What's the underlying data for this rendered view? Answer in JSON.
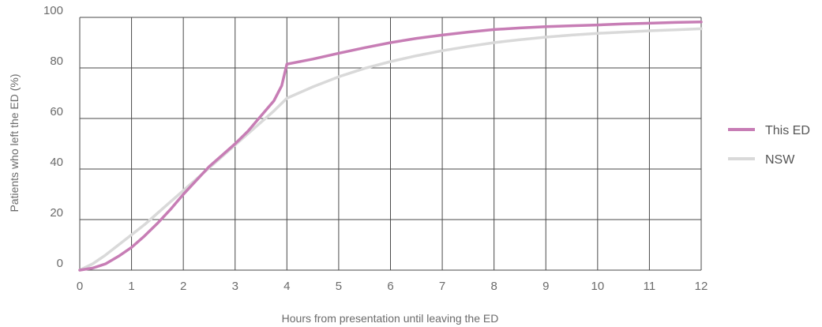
{
  "chart_data": {
    "type": "line",
    "title": "",
    "xlabel": "Hours from presentation until leaving the ED",
    "ylabel": "Patients who left the ED (%)",
    "xlim": [
      0,
      12
    ],
    "ylim": [
      0,
      100
    ],
    "xticks": [
      "0",
      "1",
      "2",
      "3",
      "4",
      "5",
      "6",
      "7",
      "8",
      "9",
      "10",
      "11",
      "12"
    ],
    "yticks": [
      "0",
      "20",
      "40",
      "60",
      "80",
      "100"
    ],
    "grid": true,
    "legend_position": "right",
    "series": [
      {
        "name": "This ED",
        "color": "#c77db5",
        "x": [
          0,
          0.25,
          0.5,
          0.75,
          1,
          1.25,
          1.5,
          1.75,
          2,
          2.25,
          2.5,
          2.75,
          3,
          3.25,
          3.5,
          3.75,
          3.9,
          4,
          4.5,
          5,
          5.5,
          6,
          6.5,
          7,
          7.5,
          8,
          8.5,
          9,
          9.5,
          10,
          10.5,
          11,
          11.5,
          12
        ],
        "y": [
          0,
          0.8,
          2.5,
          5.5,
          9,
          13.5,
          18.5,
          24,
          30,
          35.5,
          41,
          45.5,
          50,
          55,
          61,
          67,
          73,
          81.5,
          83.5,
          85.8,
          88,
          90,
          91.7,
          93,
          94.2,
          95.2,
          95.8,
          96.3,
          96.7,
          97,
          97.4,
          97.7,
          98,
          98.2
        ]
      },
      {
        "name": "NSW",
        "color": "#d9d9d9",
        "x": [
          0,
          0.25,
          0.5,
          0.75,
          1,
          1.25,
          1.5,
          1.75,
          2,
          2.25,
          2.5,
          2.75,
          3,
          3.25,
          3.5,
          3.75,
          4,
          4.5,
          5,
          5.5,
          6,
          6.5,
          7,
          7.5,
          8,
          8.5,
          9,
          9.5,
          10,
          10.5,
          11,
          11.5,
          12
        ],
        "y": [
          0,
          2.5,
          6,
          10,
          14,
          18,
          22.5,
          27,
          31.5,
          36,
          40.5,
          45,
          49.5,
          54,
          58.5,
          63,
          68,
          72.5,
          76.5,
          79.8,
          82.5,
          84.8,
          86.8,
          88.5,
          90,
          91.2,
          92.2,
          93,
          93.7,
          94.2,
          94.7,
          95.1,
          95.5
        ]
      }
    ]
  }
}
